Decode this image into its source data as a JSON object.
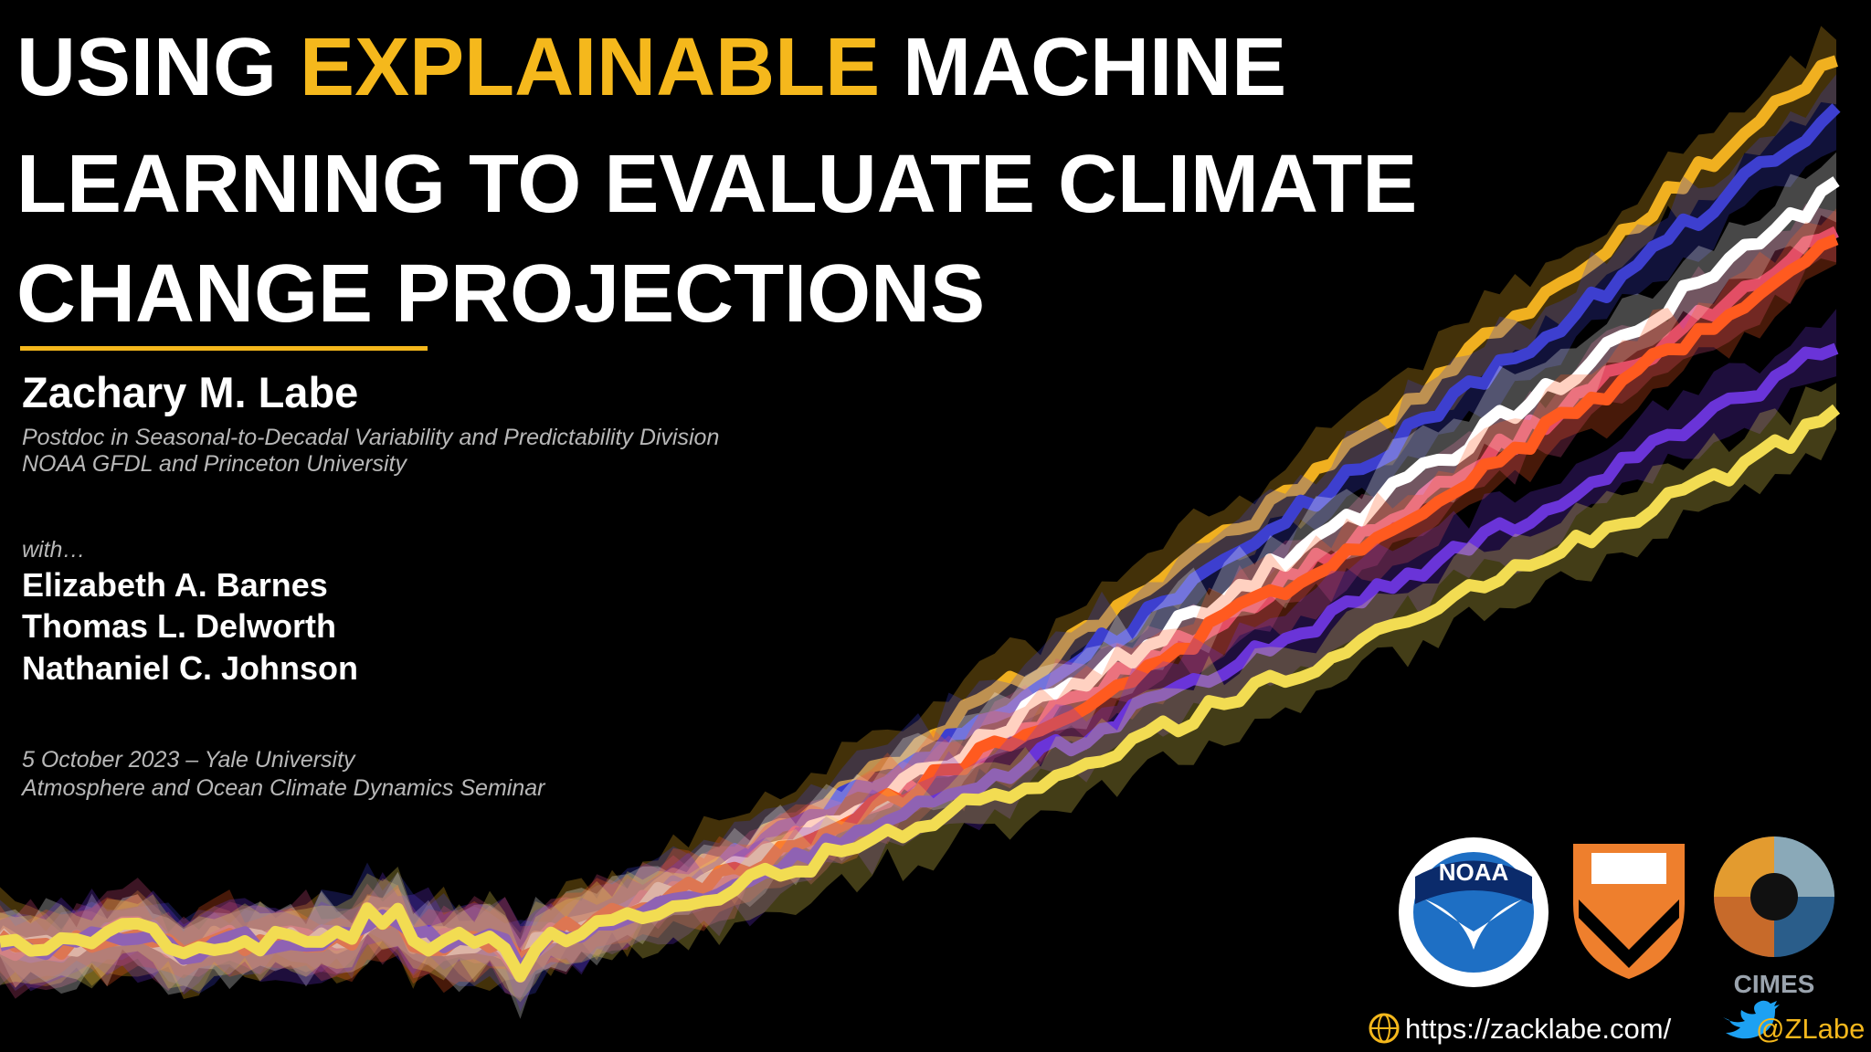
{
  "title": {
    "line1": {
      "before": "USING ",
      "highlight": "EXPLAINABLE",
      "after": " MACHINE"
    },
    "line2": "LEARNING TO EVALUATE CLIMATE",
    "line3": "CHANGE PROJECTIONS"
  },
  "author": {
    "name": "Zachary M. Labe",
    "position": "Postdoc in Seasonal-to-Decadal Variability and Predictability Division",
    "affiliation": "NOAA GFDL and Princeton University"
  },
  "coauthors": {
    "intro": "with…",
    "names": [
      "Elizabeth A. Barnes",
      "Thomas L. Delworth",
      "Nathaniel C. Johnson"
    ]
  },
  "event": {
    "date": "5 October 2023 – Yale University",
    "seminar": "Atmosphere and Ocean Climate Dynamics Seminar"
  },
  "logos": {
    "noaa": "NOAA",
    "cimes": "CIMES"
  },
  "footer": {
    "url": "https://zacklabe.com/",
    "twitter": "@ZLabe"
  }
}
